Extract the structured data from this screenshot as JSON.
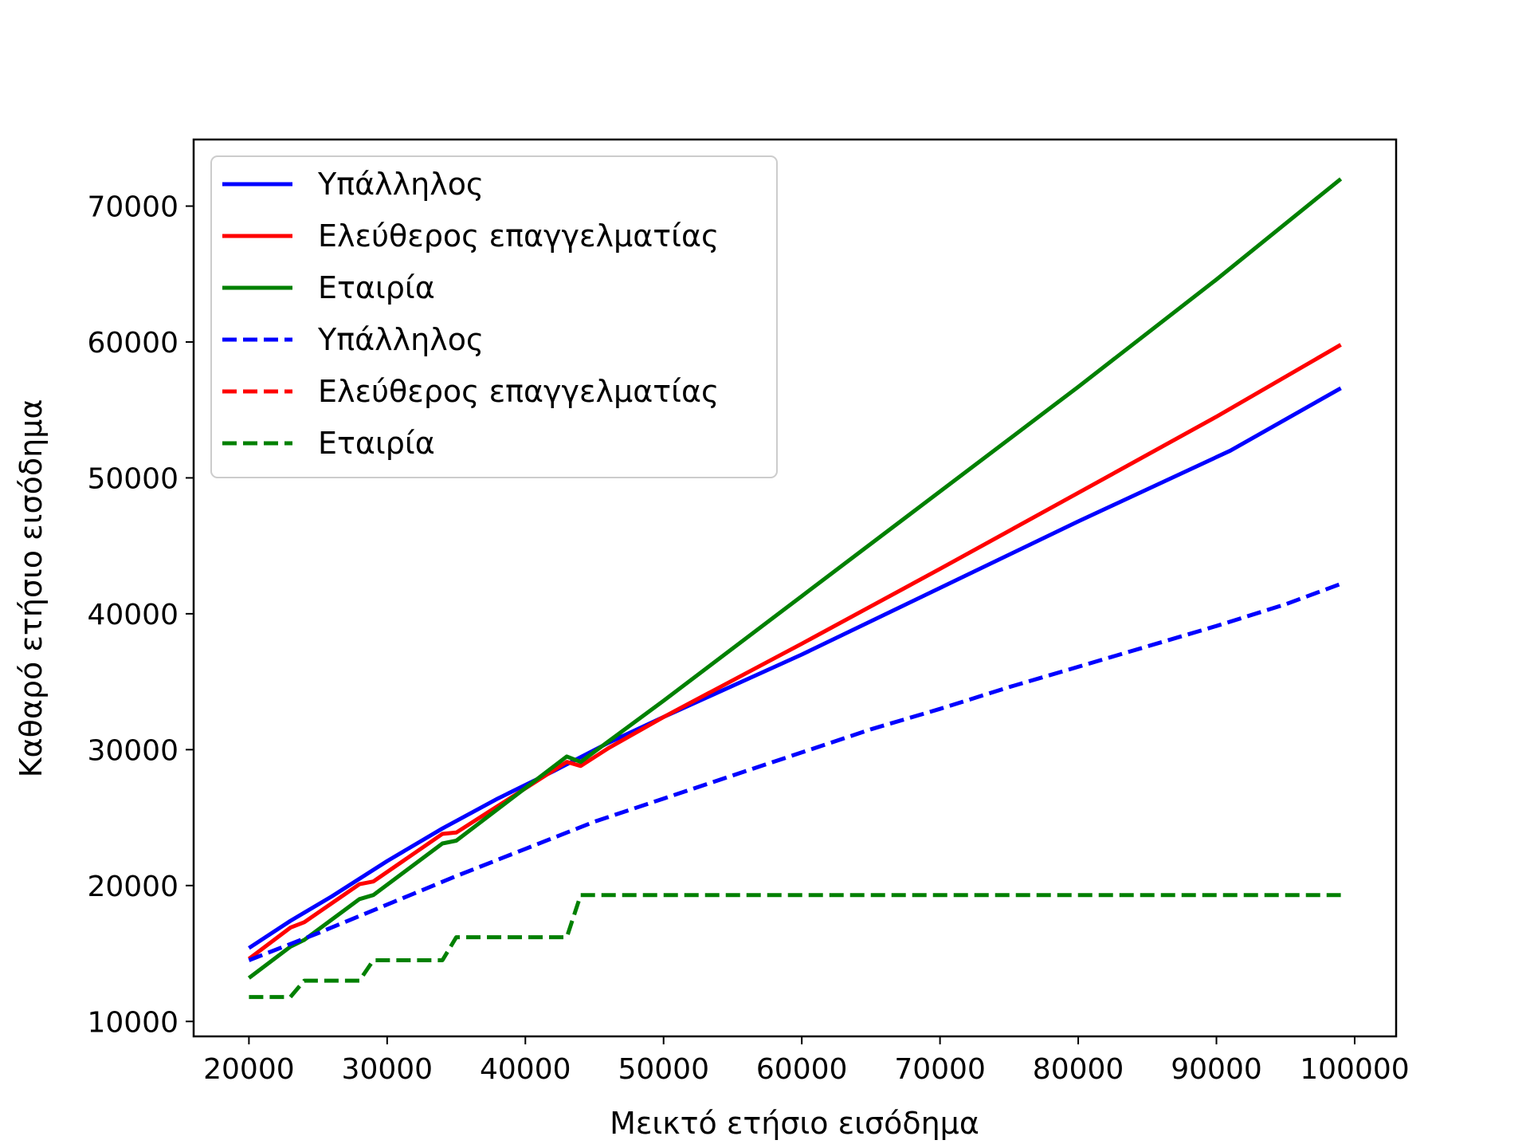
{
  "chart_data": {
    "type": "line",
    "title": "",
    "xlabel": "Μεικτό ετήσιο εισόδημα",
    "ylabel": "Καθαρό ετήσιο εισόδημα",
    "xlim": [
      16000,
      103000
    ],
    "ylim": [
      8900,
      74900
    ],
    "xticks": [
      20000,
      30000,
      40000,
      50000,
      60000,
      70000,
      80000,
      90000,
      100000
    ],
    "yticks": [
      10000,
      20000,
      30000,
      40000,
      50000,
      60000,
      70000
    ],
    "grid": false,
    "legend_position": "upper-left",
    "series": [
      {
        "name": "Υπάλληλος",
        "color": "#0000ff",
        "style": "solid",
        "x": [
          20000,
          23000,
          26000,
          30000,
          34000,
          38000,
          42000,
          46000,
          50000,
          60000,
          70000,
          80000,
          91000,
          99000
        ],
        "y": [
          15400,
          17400,
          19200,
          21800,
          24200,
          26400,
          28400,
          30500,
          32400,
          37000,
          41900,
          46800,
          52000,
          56600
        ]
      },
      {
        "name": "Ελεύθερος επαγγελματίας",
        "color": "#ff0000",
        "style": "solid",
        "x": [
          20000,
          23000,
          24000,
          28000,
          29000,
          34000,
          35000,
          43000,
          44000,
          46000,
          50000,
          60000,
          70000,
          80000,
          90000,
          99000
        ],
        "y": [
          14600,
          16900,
          17300,
          20100,
          20300,
          23800,
          23900,
          29100,
          28800,
          30100,
          32400,
          37800,
          43300,
          48900,
          54500,
          59800
        ]
      },
      {
        "name": "Εταιρία",
        "color": "#008000",
        "style": "solid",
        "x": [
          20000,
          23000,
          24000,
          28000,
          29000,
          34000,
          35000,
          43000,
          44000,
          50000,
          60000,
          70000,
          80000,
          90000,
          99000
        ],
        "y": [
          13200,
          15500,
          16000,
          19000,
          19300,
          23100,
          23300,
          29500,
          29100,
          33600,
          41300,
          49000,
          56700,
          64600,
          72000
        ]
      },
      {
        "name": "Υπάλληλος",
        "color": "#0000ff",
        "style": "dashed",
        "x": [
          20000,
          25000,
          30000,
          35000,
          40000,
          45000,
          50000,
          55000,
          60000,
          65000,
          70000,
          75000,
          80000,
          85000,
          90000,
          95000,
          99000
        ],
        "y": [
          14500,
          16500,
          18600,
          20700,
          22700,
          24700,
          26400,
          28100,
          29800,
          31500,
          33000,
          34600,
          36100,
          37600,
          39100,
          40700,
          42200
        ]
      },
      {
        "name": "Ελεύθερος επαγγελματίας",
        "color": "#ff0000",
        "style": "dashed",
        "x": [],
        "y": []
      },
      {
        "name": "Εταιρία",
        "color": "#008000",
        "style": "dashed",
        "x": [
          20000,
          23000,
          24000,
          28000,
          29000,
          34000,
          35000,
          43000,
          44000,
          50000,
          60000,
          70000,
          80000,
          90000,
          99000
        ],
        "y": [
          11800,
          11800,
          13000,
          13000,
          14500,
          14500,
          16200,
          16200,
          19300,
          19300,
          19300,
          19300,
          19300,
          19300,
          19300
        ]
      }
    ]
  }
}
